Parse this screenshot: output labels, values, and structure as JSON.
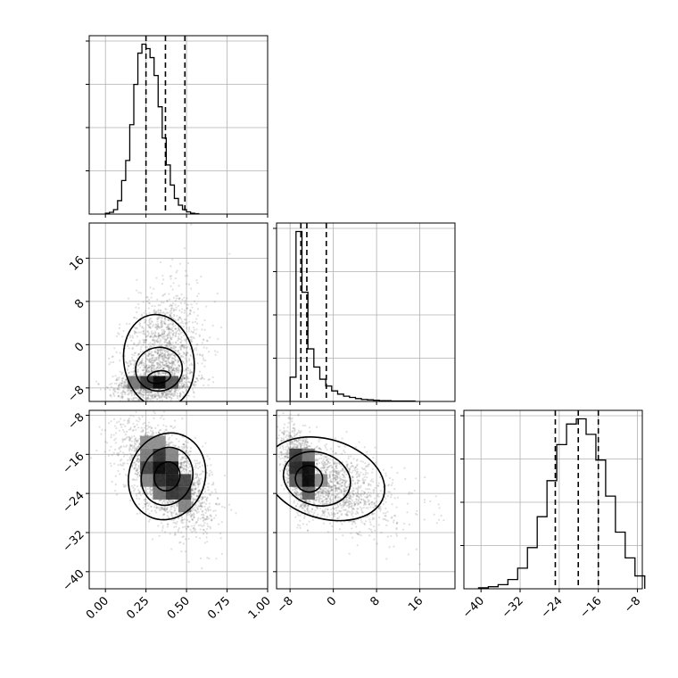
{
  "chart_data": {
    "type": "corner",
    "grid": true,
    "colors": {
      "line": "#000000",
      "grid": "#b0b0b0",
      "scatter": "#555555",
      "background": "#ffffff"
    },
    "params": [
      {
        "range": [
          -0.1,
          1.0
        ],
        "ticks": [
          0.0,
          0.25,
          0.5,
          0.75,
          1.0
        ],
        "tick_labels": [
          "0.00",
          "0.25",
          "0.50",
          "0.75",
          "1.00"
        ]
      },
      {
        "range": [
          -10.5,
          22.5
        ],
        "ticks": [
          -8,
          0,
          8,
          16
        ],
        "tick_labels": [
          "−8",
          "0",
          "8",
          "16"
        ]
      },
      {
        "range": [
          -43.5,
          -7
        ],
        "ticks": [
          -40,
          -32,
          -24,
          -16,
          -8
        ],
        "tick_labels": [
          "−40",
          "−32",
          "−24",
          "−16",
          "−8"
        ]
      }
    ],
    "histograms": [
      {
        "param": 0,
        "ymax": 320,
        "bins": [
          [
            0.0,
            2
          ],
          [
            0.025,
            4
          ],
          [
            0.05,
            10
          ],
          [
            0.075,
            30
          ],
          [
            0.1,
            75
          ],
          [
            0.125,
            120
          ],
          [
            0.15,
            200
          ],
          [
            0.175,
            290
          ],
          [
            0.2,
            360
          ],
          [
            0.225,
            380
          ],
          [
            0.25,
            370
          ],
          [
            0.275,
            350
          ],
          [
            0.3,
            310
          ],
          [
            0.325,
            240
          ],
          [
            0.35,
            170
          ],
          [
            0.375,
            110
          ],
          [
            0.4,
            65
          ],
          [
            0.425,
            35
          ],
          [
            0.45,
            20
          ],
          [
            0.475,
            10
          ],
          [
            0.5,
            5
          ],
          [
            0.525,
            2
          ],
          [
            0.55,
            1
          ]
        ],
        "bin_width": 0.025,
        "quantiles": [
          0.25,
          0.37,
          0.49
        ]
      },
      {
        "param": 1,
        "bins": [
          [
            -8.0,
            60
          ],
          [
            -6.9,
            420
          ],
          [
            -5.8,
            270
          ],
          [
            -4.7,
            130
          ],
          [
            -3.6,
            85
          ],
          [
            -2.5,
            55
          ],
          [
            -1.4,
            38
          ],
          [
            -0.3,
            26
          ],
          [
            0.8,
            18
          ],
          [
            1.9,
            13
          ],
          [
            3.0,
            10
          ],
          [
            4.1,
            7
          ],
          [
            5.2,
            5
          ],
          [
            6.3,
            4
          ],
          [
            7.4,
            3
          ],
          [
            8.5,
            2
          ],
          [
            9.6,
            2
          ],
          [
            10.7,
            1
          ],
          [
            11.8,
            1
          ],
          [
            12.9,
            1
          ],
          [
            14.0,
            1
          ]
        ],
        "bin_width": 1.1,
        "quantiles": [
          -6.0,
          -4.9,
          -1.3
        ]
      },
      {
        "param": 2,
        "bins": [
          [
            -40.5,
            2
          ],
          [
            -38.5,
            4
          ],
          [
            -36.5,
            8
          ],
          [
            -34.5,
            18
          ],
          [
            -32.5,
            40
          ],
          [
            -30.5,
            80
          ],
          [
            -28.5,
            140
          ],
          [
            -26.5,
            210
          ],
          [
            -24.5,
            280
          ],
          [
            -22.5,
            320
          ],
          [
            -20.5,
            330
          ],
          [
            -18.5,
            300
          ],
          [
            -16.5,
            250
          ],
          [
            -14.5,
            180
          ],
          [
            -12.5,
            110
          ],
          [
            -10.5,
            60
          ],
          [
            -8.5,
            25
          ]
        ],
        "bin_width": 2,
        "quantiles": [
          -24.8,
          -20.1,
          -16.0
        ]
      }
    ],
    "pairs": [
      {
        "x": 0,
        "y": 1,
        "center": [
          0.33,
          -6.0
        ],
        "sd": [
          0.12,
          4.2
        ],
        "corr": 0.25,
        "skew_y": 1.8,
        "n": 2600
      },
      {
        "x": 0,
        "y": 2,
        "center": [
          0.38,
          -20.5
        ],
        "sd": [
          0.13,
          5.0
        ],
        "corr": -0.55,
        "skew_y": 0.0,
        "n": 2600
      },
      {
        "x": 1,
        "y": 2,
        "center": [
          -4.5,
          -21.0
        ],
        "sd": [
          4.2,
          4.5
        ],
        "corr": -0.55,
        "skew_x": 1.8,
        "n": 2600
      }
    ]
  }
}
